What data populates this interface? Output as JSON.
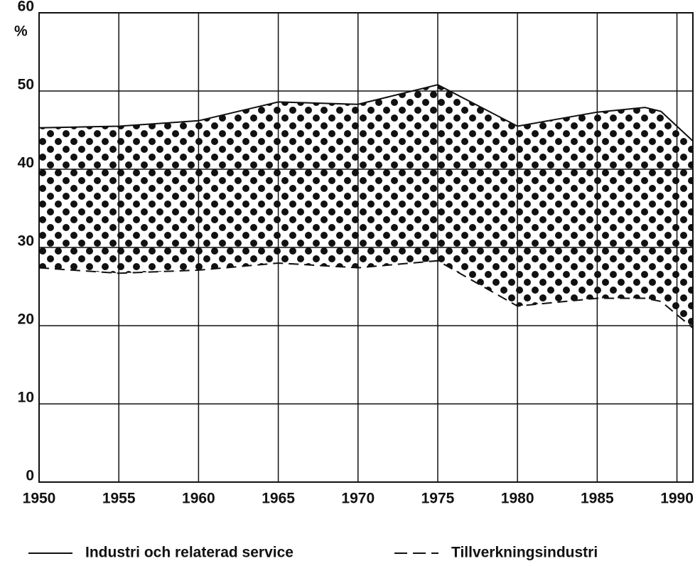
{
  "chart_data": {
    "type": "line",
    "y_unit": "%",
    "x": [
      1950,
      1955,
      1960,
      1965,
      1970,
      1975,
      1980,
      1985,
      1988,
      1989,
      1991
    ],
    "series": [
      {
        "name": "Industri och relaterad service",
        "color": "#111111",
        "style": "solid",
        "values": [
          45.3,
          45.5,
          46.2,
          48.6,
          48.3,
          50.8,
          45.5,
          47.3,
          47.9,
          47.4,
          43.6
        ]
      },
      {
        "name": "Tillverkningsindustri",
        "color": "#111111",
        "style": "dashed",
        "values": [
          27.4,
          26.7,
          27.1,
          28.0,
          27.4,
          28.3,
          22.5,
          23.5,
          23.5,
          23.1,
          19.7
        ]
      }
    ],
    "xlim": [
      1950,
      1991
    ],
    "xticks": [
      1950,
      1955,
      1960,
      1965,
      1970,
      1975,
      1980,
      1985,
      1990
    ],
    "ylim": [
      0,
      60
    ],
    "yticks": [
      0,
      10,
      20,
      30,
      40,
      50,
      60
    ],
    "grid": true,
    "fill_between": true
  }
}
